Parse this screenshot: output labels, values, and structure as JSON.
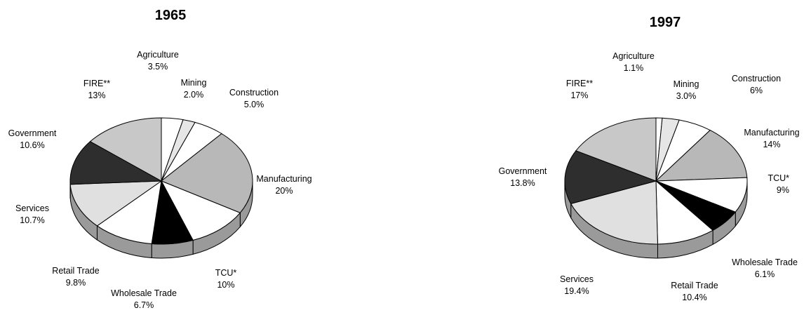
{
  "chart_data": [
    {
      "type": "pie",
      "title": "1965",
      "slices": [
        {
          "label": "Agriculture",
          "value_text": "3.5%",
          "value": 3.5
        },
        {
          "label": "Mining",
          "value_text": "2.0%",
          "value": 2.0
        },
        {
          "label": "Construction",
          "value_text": "5.0%",
          "value": 5.0
        },
        {
          "label": "Manufacturing",
          "value_text": "20%",
          "value": 20
        },
        {
          "label": "TCU*",
          "value_text": "10%",
          "value": 10
        },
        {
          "label": "Wholesale Trade",
          "value_text": "6.7%",
          "value": 6.7
        },
        {
          "label": "Retail Trade",
          "value_text": "9.8%",
          "value": 9.8
        },
        {
          "label": "Services",
          "value_text": "10.7%",
          "value": 10.7
        },
        {
          "label": "Government",
          "value_text": "10.6%",
          "value": 10.6
        },
        {
          "label": "FIRE**",
          "value_text": "13%",
          "value": 13
        }
      ]
    },
    {
      "type": "pie",
      "title": "1997",
      "slices": [
        {
          "label": "Agriculture",
          "value_text": "1.1%",
          "value": 1.1
        },
        {
          "label": "Mining",
          "value_text": "3.0%",
          "value": 3.0
        },
        {
          "label": "Construction",
          "value_text": "6%",
          "value": 6
        },
        {
          "label": "Manufacturing",
          "value_text": "14%",
          "value": 14
        },
        {
          "label": "TCU*",
          "value_text": "9%",
          "value": 9
        },
        {
          "label": "Wholesale Trade",
          "value_text": "6.1%",
          "value": 6.1
        },
        {
          "label": "Retail Trade",
          "value_text": "10.4%",
          "value": 10.4
        },
        {
          "label": "Services",
          "value_text": "19.4%",
          "value": 19.4
        },
        {
          "label": "Government",
          "value_text": "13.8%",
          "value": 13.8
        },
        {
          "label": "FIRE**",
          "value_text": "17%",
          "value": 17
        }
      ]
    }
  ],
  "colors": {
    "Agriculture": "#ffffff",
    "Mining": "#e6e6e6",
    "Construction": "#ffffff",
    "Manufacturing": "#b8b8b8",
    "TCU*": "#ffffff",
    "Wholesale Trade": "#000000",
    "Retail Trade": "#ffffff",
    "Services": "#e0e0e0",
    "Government": "#2e2e2e",
    "FIRE**": "#c8c8c8",
    "side": "#9a9a9a",
    "stroke": "#000000"
  }
}
